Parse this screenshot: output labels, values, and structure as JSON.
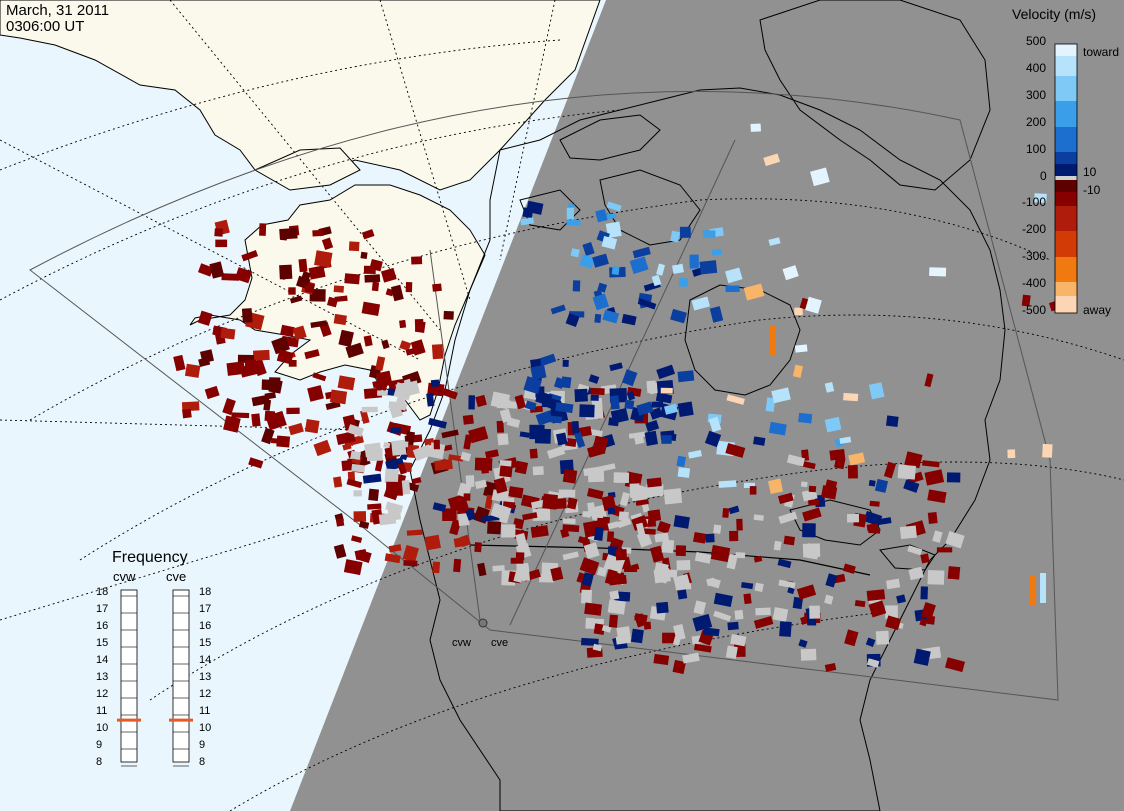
{
  "header": {
    "date": "March, 31 2011",
    "time": "0306:00 UT"
  },
  "velocity_legend": {
    "title": "Velocity (m/s)",
    "ticks": [
      "500",
      "400",
      "300",
      "200",
      "100",
      "0",
      "-100",
      "-200",
      "-300",
      "-400",
      "-500"
    ],
    "inner_labels": [
      "10",
      "-10"
    ],
    "toward_label": "toward",
    "away_label": "away",
    "colors": {
      "toward": [
        "#e3f4fe",
        "#b6e2fb",
        "#7fc9f6",
        "#3a9fe8",
        "#1c6fcf",
        "#0b3f9f",
        "#001a72"
      ],
      "away": [
        "#5c0000",
        "#870000",
        "#b01c0c",
        "#d23b06",
        "#f07a10",
        "#f8b468",
        "#fbd5b4"
      ],
      "ground_scatter": "#c8c8c8"
    }
  },
  "frequency_panel": {
    "title": "Frequency",
    "radars": [
      {
        "name": "cvw",
        "value": 10.7
      },
      {
        "name": "cve",
        "value": 10.7
      }
    ],
    "scale": [
      "18",
      "17",
      "16",
      "15",
      "14",
      "13",
      "12",
      "11",
      "10",
      "9",
      "8"
    ],
    "marker_color": "#e85a24"
  },
  "radar_labels": [
    "cvw",
    "cve"
  ],
  "colors": {
    "ocean": "#eaf6fd",
    "night": "#919191",
    "land_day": "#fbf9ec",
    "ground_scatter": "#c8c8c8"
  }
}
